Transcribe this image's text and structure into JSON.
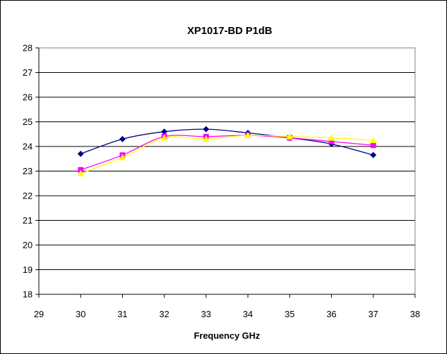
{
  "chart_data": {
    "type": "line",
    "title": "XP1017-BD P1dB",
    "xlabel": "Frequency GHz",
    "ylabel": "",
    "xlim": [
      29,
      38
    ],
    "ylim": [
      18,
      28
    ],
    "xticks": [
      29,
      30,
      31,
      32,
      33,
      34,
      35,
      36,
      37,
      38
    ],
    "yticks": [
      18,
      19,
      20,
      21,
      22,
      23,
      24,
      25,
      26,
      27,
      28
    ],
    "grid": "horizontal",
    "legend": "none",
    "x": [
      30,
      31,
      32,
      33,
      34,
      35,
      36,
      37
    ],
    "series": [
      {
        "color": "#000080",
        "marker": "diamond",
        "values": [
          23.7,
          24.3,
          24.6,
          24.7,
          24.55,
          24.35,
          24.1,
          23.65
        ]
      },
      {
        "color": "#ff00ff",
        "marker": "square",
        "values": [
          23.05,
          23.65,
          24.4,
          24.4,
          24.45,
          24.35,
          24.2,
          24.05
        ]
      },
      {
        "color": "#ffff00",
        "marker": "triangle",
        "values": [
          22.9,
          23.55,
          24.35,
          24.3,
          24.45,
          24.4,
          24.35,
          24.25
        ]
      }
    ]
  }
}
